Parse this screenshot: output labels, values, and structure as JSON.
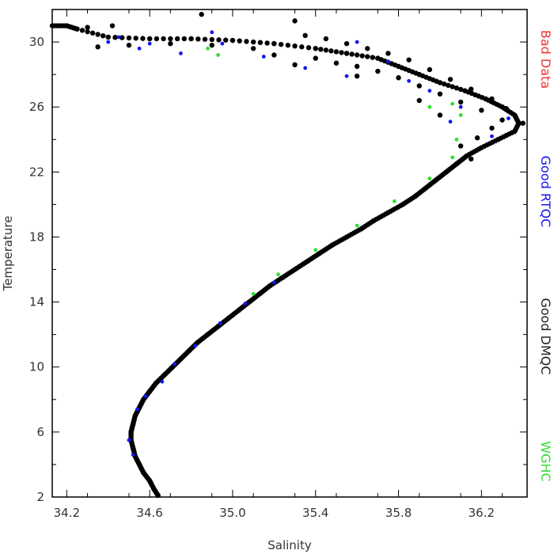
{
  "chart_data": {
    "type": "scatter",
    "title": "",
    "xlabel": "Salinity",
    "ylabel": "Temperature",
    "xlim": [
      34.13,
      36.42
    ],
    "ylim": [
      2,
      32
    ],
    "xticks": [
      34.2,
      34.6,
      35.0,
      35.4,
      35.8,
      36.2
    ],
    "xtick_labels": [
      "34.2",
      "34.6",
      "35.0",
      "35.4",
      "35.8",
      "36.2"
    ],
    "yticks": [
      2,
      6,
      10,
      14,
      18,
      22,
      26,
      30
    ],
    "ytick_labels": [
      "2",
      "6",
      "10",
      "14",
      "18",
      "22",
      "26",
      "30"
    ],
    "grid": false,
    "legend_placement": "right-vertical",
    "series": [
      {
        "name": "Good DMQC",
        "color": "#000000",
        "points": [
          [
            34.64,
            2.1
          ],
          [
            34.62,
            2.5
          ],
          [
            34.6,
            3.0
          ],
          [
            34.57,
            3.5
          ],
          [
            34.55,
            4.0
          ],
          [
            34.53,
            4.5
          ],
          [
            34.52,
            5.0
          ],
          [
            34.51,
            5.5
          ],
          [
            34.51,
            6.0
          ],
          [
            34.52,
            6.5
          ],
          [
            34.53,
            7.0
          ],
          [
            34.55,
            7.5
          ],
          [
            34.57,
            8.0
          ],
          [
            34.6,
            8.5
          ],
          [
            34.63,
            9.0
          ],
          [
            34.67,
            9.5
          ],
          [
            34.71,
            10.0
          ],
          [
            34.75,
            10.5
          ],
          [
            34.79,
            11.0
          ],
          [
            34.83,
            11.5
          ],
          [
            34.88,
            12.0
          ],
          [
            34.93,
            12.5
          ],
          [
            34.98,
            13.0
          ],
          [
            35.03,
            13.5
          ],
          [
            35.08,
            14.0
          ],
          [
            35.13,
            14.5
          ],
          [
            35.18,
            15.0
          ],
          [
            35.24,
            15.5
          ],
          [
            35.3,
            16.0
          ],
          [
            35.36,
            16.5
          ],
          [
            35.42,
            17.0
          ],
          [
            35.48,
            17.5
          ],
          [
            35.55,
            18.0
          ],
          [
            35.62,
            18.5
          ],
          [
            35.68,
            19.0
          ],
          [
            35.75,
            19.5
          ],
          [
            35.82,
            20.0
          ],
          [
            35.88,
            20.5
          ],
          [
            35.93,
            21.0
          ],
          [
            35.98,
            21.5
          ],
          [
            36.03,
            22.0
          ],
          [
            36.08,
            22.5
          ],
          [
            36.13,
            23.0
          ],
          [
            36.2,
            23.5
          ],
          [
            36.28,
            24.0
          ],
          [
            36.36,
            24.5
          ],
          [
            36.38,
            25.0
          ],
          [
            36.36,
            25.5
          ],
          [
            36.3,
            26.0
          ],
          [
            36.22,
            26.5
          ],
          [
            36.12,
            27.0
          ],
          [
            36.0,
            27.5
          ],
          [
            35.9,
            28.0
          ],
          [
            35.8,
            28.5
          ],
          [
            35.7,
            29.0
          ],
          [
            35.55,
            29.3
          ],
          [
            35.4,
            29.6
          ],
          [
            35.2,
            29.9
          ],
          [
            35.0,
            30.1
          ],
          [
            34.8,
            30.2
          ],
          [
            34.6,
            30.2
          ],
          [
            34.4,
            30.3
          ],
          [
            34.25,
            30.8
          ],
          [
            34.2,
            31.0
          ],
          [
            34.13,
            31.0
          ]
        ],
        "cloud_points": [
          [
            35.4,
            29.0
          ],
          [
            35.5,
            28.7
          ],
          [
            35.6,
            28.5
          ],
          [
            35.7,
            28.2
          ],
          [
            35.8,
            27.8
          ],
          [
            35.9,
            27.3
          ],
          [
            36.0,
            26.8
          ],
          [
            36.1,
            26.3
          ],
          [
            36.2,
            25.8
          ],
          [
            36.3,
            25.2
          ],
          [
            36.25,
            24.7
          ],
          [
            36.18,
            24.1
          ],
          [
            36.1,
            23.6
          ],
          [
            36.15,
            22.8
          ],
          [
            35.35,
            30.4
          ],
          [
            35.45,
            30.2
          ],
          [
            35.55,
            29.9
          ],
          [
            35.65,
            29.6
          ],
          [
            35.75,
            29.3
          ],
          [
            35.85,
            28.9
          ],
          [
            35.95,
            28.3
          ],
          [
            36.05,
            27.7
          ],
          [
            36.15,
            27.1
          ],
          [
            36.25,
            26.5
          ],
          [
            36.32,
            25.9
          ],
          [
            36.4,
            25.0
          ],
          [
            35.2,
            29.2
          ],
          [
            35.1,
            29.6
          ],
          [
            34.9,
            29.8
          ],
          [
            34.7,
            29.9
          ],
          [
            34.5,
            29.8
          ],
          [
            34.35,
            29.7
          ],
          [
            35.3,
            28.6
          ],
          [
            35.6,
            27.9
          ],
          [
            35.9,
            26.4
          ],
          [
            36.0,
            25.5
          ],
          [
            35.3,
            31.3
          ],
          [
            34.85,
            31.7
          ],
          [
            34.3,
            30.9
          ],
          [
            34.42,
            31.0
          ]
        ]
      },
      {
        "name": "Good RTQC",
        "color": "#1515f0",
        "points": [
          [
            34.5,
            5.5
          ],
          [
            34.52,
            4.6
          ],
          [
            34.54,
            7.4
          ],
          [
            34.58,
            8.2
          ],
          [
            34.66,
            9.1
          ],
          [
            34.72,
            10.2
          ],
          [
            34.82,
            11.3
          ],
          [
            34.94,
            12.7
          ],
          [
            35.06,
            13.9
          ],
          [
            35.2,
            15.2
          ],
          [
            34.4,
            30.0
          ],
          [
            34.55,
            29.6
          ],
          [
            34.75,
            29.3
          ],
          [
            34.95,
            29.9
          ],
          [
            35.15,
            29.1
          ],
          [
            35.35,
            28.4
          ],
          [
            35.55,
            27.9
          ],
          [
            35.75,
            28.8
          ],
          [
            35.95,
            27.0
          ],
          [
            36.1,
            26.0
          ],
          [
            36.25,
            24.2
          ],
          [
            36.33,
            25.3
          ],
          [
            34.45,
            30.3
          ],
          [
            34.9,
            30.6
          ],
          [
            35.6,
            30.0
          ],
          [
            36.05,
            25.1
          ],
          [
            35.85,
            27.6
          ],
          [
            34.6,
            29.9
          ]
        ]
      },
      {
        "name": "WGHC",
        "color": "#33dd33",
        "points": [
          [
            34.88,
            29.6
          ],
          [
            35.1,
            14.5
          ],
          [
            35.22,
            15.7
          ],
          [
            35.4,
            17.2
          ],
          [
            35.6,
            18.7
          ],
          [
            35.78,
            20.2
          ],
          [
            35.95,
            21.6
          ],
          [
            36.06,
            22.9
          ],
          [
            36.08,
            24.0
          ],
          [
            36.06,
            26.2
          ],
          [
            35.95,
            26.0
          ],
          [
            34.93,
            29.2
          ],
          [
            36.1,
            25.5
          ]
        ]
      },
      {
        "name": "Bad Data",
        "color": "#ee3333",
        "points": []
      }
    ]
  }
}
